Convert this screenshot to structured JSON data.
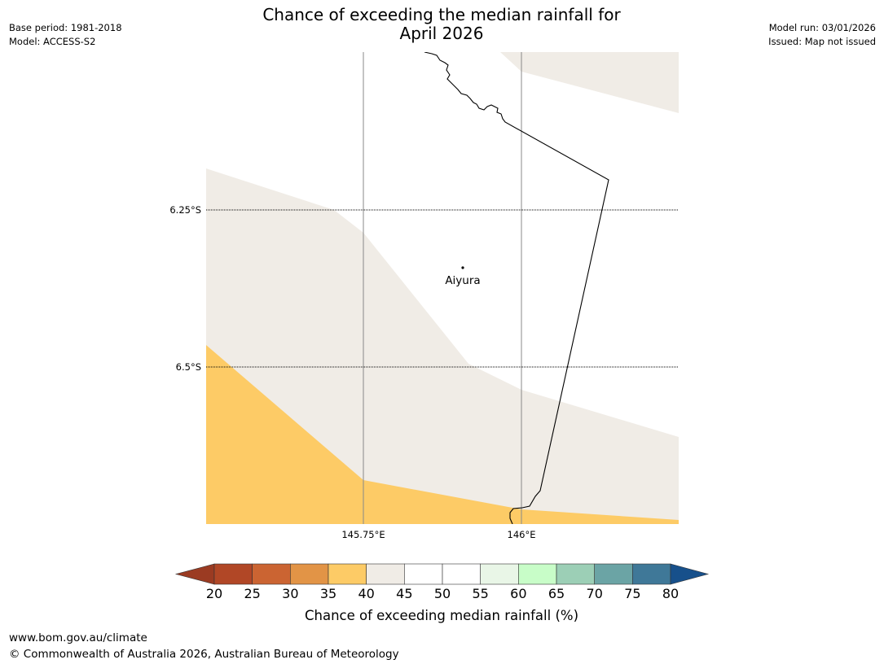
{
  "title": {
    "line1": "Chance of exceeding the median rainfall for",
    "line2": "April 2026"
  },
  "meta_left": {
    "base_period": "Base period: 1981-2018",
    "model": "Model: ACCESS-S2"
  },
  "meta_right": {
    "model_run": "Model run: 03/01/2026",
    "issued": "Issued: Map not issued"
  },
  "map": {
    "lat_labels": [
      "6.25°S",
      "6.5°S"
    ],
    "lon_labels": [
      "145.75°E",
      "146°E"
    ],
    "place": "Aiyura",
    "region_colors": {
      "pale": "#f0ece6",
      "yellow": "#fdcb66",
      "grid": "#888888"
    }
  },
  "legend": {
    "label": "Chance of exceeding median rainfall (%)",
    "ticks": [
      "20",
      "25",
      "30",
      "35",
      "40",
      "45",
      "50",
      "55",
      "60",
      "65",
      "70",
      "75",
      "80"
    ],
    "below_color": "#9b3b22",
    "above_color": "#17508b",
    "colors": [
      "#b14726",
      "#cb6432",
      "#e29446",
      "#fdcb66",
      "#f0ece6",
      "#ffffff",
      "#ffffff",
      "#e9f6e7",
      "#c8fdc8",
      "#9ccfb6",
      "#6ba4a5",
      "#3f7898"
    ]
  },
  "footer": {
    "url": "www.bom.gov.au/climate",
    "copyright": "© Commonwealth of Australia 2026, Australian Bureau of Meteorology"
  }
}
